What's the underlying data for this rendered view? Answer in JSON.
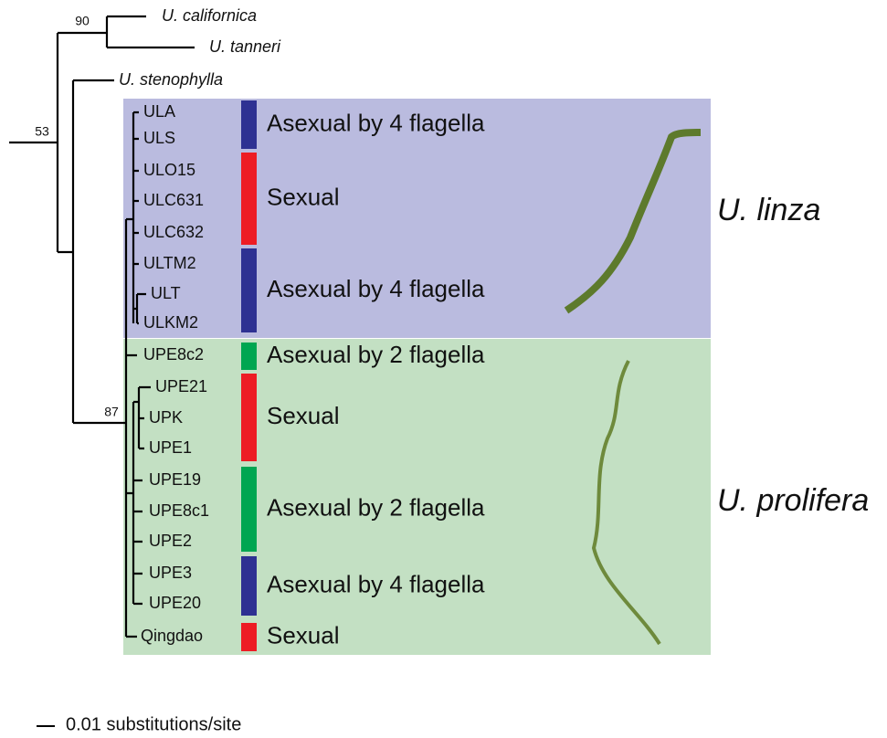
{
  "tree": {
    "bootstrap": [
      90,
      53,
      87
    ],
    "outgroups": [
      "U. californica",
      "U. tanneri",
      "U. stenophylla"
    ],
    "leaves": [
      "ULA",
      "ULS",
      "ULO15",
      "ULC631",
      "ULC632",
      "ULTM2",
      "ULT",
      "ULKM2",
      "UPE8c2",
      "UPE21",
      "UPK",
      "UPE1",
      "UPE19",
      "UPE8c1",
      "UPE2",
      "UPE3",
      "UPE20",
      "Qingdao"
    ]
  },
  "groups": [
    {
      "label": "Asexual by 4 flagella",
      "color": "#2e3192"
    },
    {
      "label": "Sexual",
      "color": "#ed1c24"
    },
    {
      "label": "Asexual by 4 flagella",
      "color": "#2e3192"
    },
    {
      "label": "Asexual by 2 flagella",
      "color": "#00a651"
    },
    {
      "label": "Sexual",
      "color": "#ed1c24"
    },
    {
      "label": "Asexual by 2 flagella",
      "color": "#00a651"
    },
    {
      "label": "Asexual by 4 flagella",
      "color": "#2e3192"
    },
    {
      "label": "Sexual",
      "color": "#ed1c24"
    }
  ],
  "clades": [
    "U. linza",
    "U. prolifera"
  ],
  "scale_bar": "0.01 substitutions/site"
}
